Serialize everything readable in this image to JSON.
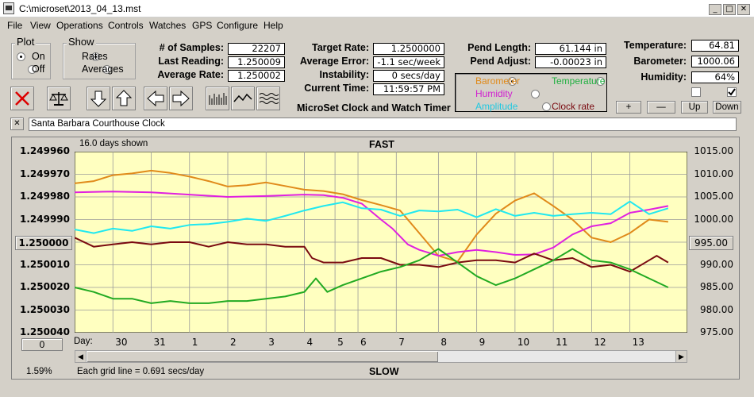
{
  "window": {
    "title": "C:\\microset\\2013_04_13.mst",
    "min_glyph": "_",
    "max_glyph": "□",
    "close_glyph": "✕"
  },
  "menu": [
    "File",
    "View",
    "Operations",
    "Controls",
    "Watches",
    "GPS",
    "Configure",
    "Help"
  ],
  "plot_group": {
    "title": "Plot",
    "on": "On",
    "off": "Off",
    "selected": "On"
  },
  "show_group": {
    "title": "Show",
    "rates": "Rates",
    "averages": "Averages",
    "selected": "Rates"
  },
  "stats": {
    "samples_label": "# of Samples:",
    "samples": "22207",
    "last_reading_label": "Last Reading:",
    "last_reading": "1.250009",
    "average_rate_label": "Average Rate:",
    "average_rate": "1.250002",
    "target_rate_label": "Target Rate:",
    "target_rate": "1.2500000",
    "average_error_label": "Average Error:",
    "average_error": "-1.1 sec/week",
    "instability_label": "Instability:",
    "instability": "0 secs/day",
    "current_time_label": "Current Time:",
    "current_time": "11:59:57 PM",
    "pend_length_label": "Pend Length:",
    "pend_length": "61.144 in",
    "pend_adjust_label": "Pend Adjust:",
    "pend_adjust": "-0.00023 in",
    "temperature_label": "Temperature:",
    "temperature": "64.81",
    "barometer_label": "Barometer:",
    "barometer": "1000.06",
    "humidity_label": "Humidity:",
    "humidity": "64%"
  },
  "app_caption": "MicroSet Clock and Watch Timer",
  "sensor_options": {
    "barometer": "Barometer",
    "temperature": "Temperature",
    "humidity": "Humidity",
    "amplitude": "Amplitude",
    "clock_rate": "Clock rate",
    "selected": "Barometer"
  },
  "scale_buttons": {
    "plus": "+",
    "minus": "—",
    "up": "Up",
    "down": "Down"
  },
  "clock_name": "Santa Barbara Courthouse Clock",
  "close_x": "✕",
  "chart_data": {
    "type": "line",
    "top_label": "FAST",
    "bottom_label": "SLOW",
    "days_shown": "16.0 days shown",
    "grid_note": "Each grid line = 0.691 secs/day",
    "percent": "1.59%",
    "left_reset_value": "1.250000",
    "right_reset_value": "995.00",
    "bottom_button_value": "0",
    "day_axis_label": "Day:",
    "left_ticks": [
      "1.249960",
      "1.249970",
      "1.249980",
      "1.249990",
      "1.250000",
      "1.250010",
      "1.250020",
      "1.250030",
      "1.250040"
    ],
    "right_ticks": [
      "1015.00",
      "1010.00",
      "1005.00",
      "1000.00",
      "995.00",
      "990.00",
      "985.00",
      "980.00",
      "975.00"
    ],
    "left_ylim": [
      1.24996,
      1.25004
    ],
    "right_ylim": [
      975,
      1015
    ],
    "x_range": [
      0,
      16
    ],
    "days": [
      "30",
      "31",
      "1",
      "2",
      "3",
      "4",
      "5",
      "6",
      "7",
      "8",
      "9",
      "10",
      "11",
      "12",
      "13"
    ],
    "day_positions": [
      1,
      2,
      3,
      4,
      5,
      6,
      6.8,
      7.4,
      8.4,
      9.5,
      10.5,
      11.5,
      12.5,
      13.5,
      14.5
    ],
    "series": [
      {
        "name": "Barometer",
        "color": "#e08a1a",
        "axis": "right",
        "x": [
          0,
          0.5,
          1,
          1.5,
          2,
          2.5,
          3,
          3.5,
          4,
          4.5,
          5,
          5.5,
          6,
          6.5,
          7,
          7.5,
          8,
          8.5,
          9,
          9.5,
          10,
          10.5,
          11,
          11.5,
          12,
          12.5,
          13,
          13.5,
          14,
          14.5,
          15,
          15.5
        ],
        "y": [
          1008,
          1008.5,
          1009.8,
          1010.2,
          1010.8,
          1010.3,
          1009.5,
          1008.5,
          1007.3,
          1007.6,
          1008.2,
          1007.4,
          1006.6,
          1006.3,
          1005.6,
          1004.3,
          1003.2,
          1002.0,
          997.0,
          992.0,
          990.7,
          996.7,
          1001.3,
          1004.2,
          1005.8,
          1003.0,
          1000.0,
          996.0,
          995.0,
          997.0,
          1000.0,
          999.5
        ]
      },
      {
        "name": "Humidity",
        "color": "#e020e0",
        "axis": "right",
        "x": [
          0,
          1,
          2,
          3,
          4,
          5,
          6,
          6.5,
          7,
          7.5,
          8,
          8.3,
          8.7,
          9,
          9.5,
          10,
          10.5,
          11,
          11.5,
          12,
          12.5,
          13,
          13.5,
          14,
          14.5,
          15,
          15.5
        ],
        "y": [
          1006.0,
          1006.2,
          1006.0,
          1005.5,
          1005.0,
          1005.2,
          1005.5,
          1005.4,
          1004.8,
          1003.5,
          1000.0,
          998.0,
          994.5,
          993.3,
          992.0,
          992.8,
          993.3,
          992.8,
          992.2,
          992.3,
          993.8,
          996.7,
          998.5,
          999.2,
          1001.5,
          1002.2,
          1003.0
        ]
      },
      {
        "name": "Temperature",
        "color": "#20e8f0",
        "axis": "right",
        "x": [
          0,
          0.5,
          1,
          1.5,
          2,
          2.5,
          3,
          3.5,
          4,
          4.5,
          5,
          5.5,
          6,
          6.5,
          7,
          7.5,
          8,
          8.5,
          9,
          9.5,
          10,
          10.5,
          11,
          11.5,
          12,
          12.5,
          13,
          13.5,
          14,
          14.5,
          15,
          15.5
        ],
        "y": [
          997.8,
          997.0,
          998.0,
          997.5,
          998.5,
          998.0,
          998.8,
          999.0,
          999.5,
          1000.2,
          999.7,
          1000.8,
          1002.0,
          1003.0,
          1003.8,
          1002.5,
          1002.2,
          1000.8,
          1002.0,
          1001.8,
          1002.2,
          1000.5,
          1002.3,
          1000.8,
          1001.5,
          1000.8,
          1001.2,
          1001.5,
          1001.2,
          1004.0,
          1001.2,
          1002.5
        ]
      },
      {
        "name": "Clock rate",
        "color": "#7a0a10",
        "axis": "left",
        "x": [
          0,
          0.5,
          1,
          1.5,
          2,
          2.5,
          3,
          3.5,
          4,
          4.5,
          5,
          5.5,
          6,
          6.2,
          6.5,
          7,
          7.5,
          8,
          8.5,
          9,
          9.5,
          10,
          10.5,
          11,
          11.5,
          12,
          12.5,
          13,
          13.5,
          14,
          14.5,
          15,
          15.2,
          15.5
        ],
        "y": [
          1.249998,
          1.250002,
          1.250001,
          1.25,
          1.250001,
          1.25,
          1.25,
          1.250002,
          1.25,
          1.250001,
          1.250001,
          1.250002,
          1.250002,
          1.250007,
          1.250009,
          1.250009,
          1.250007,
          1.250007,
          1.25001,
          1.25001,
          1.250011,
          1.250009,
          1.250008,
          1.250008,
          1.250009,
          1.250005,
          1.250008,
          1.250007,
          1.250011,
          1.25001,
          1.250013,
          1.250008,
          1.250006,
          1.250009
        ]
      },
      {
        "name": "Amplitude",
        "color": "#22aa22",
        "axis": "left",
        "x": [
          0,
          0.5,
          1,
          1.5,
          2,
          2.5,
          3,
          3.5,
          4,
          4.5,
          5,
          5.5,
          6,
          6.3,
          6.6,
          7,
          7.5,
          8,
          8.5,
          9,
          9.5,
          10,
          10.5,
          11,
          11.5,
          12,
          12.5,
          13,
          13.5,
          14,
          14.5,
          15,
          15.5
        ],
        "y": [
          1.25002,
          1.250022,
          1.250025,
          1.250025,
          1.250027,
          1.250026,
          1.250027,
          1.250027,
          1.250026,
          1.250026,
          1.250025,
          1.250024,
          1.250022,
          1.250016,
          1.250022,
          1.250019,
          1.250016,
          1.250013,
          1.250011,
          1.250008,
          1.250003,
          1.250009,
          1.250015,
          1.250019,
          1.250016,
          1.250012,
          1.250008,
          1.250003,
          1.250008,
          1.250009,
          1.250012,
          1.250016,
          1.25002
        ]
      }
    ]
  }
}
